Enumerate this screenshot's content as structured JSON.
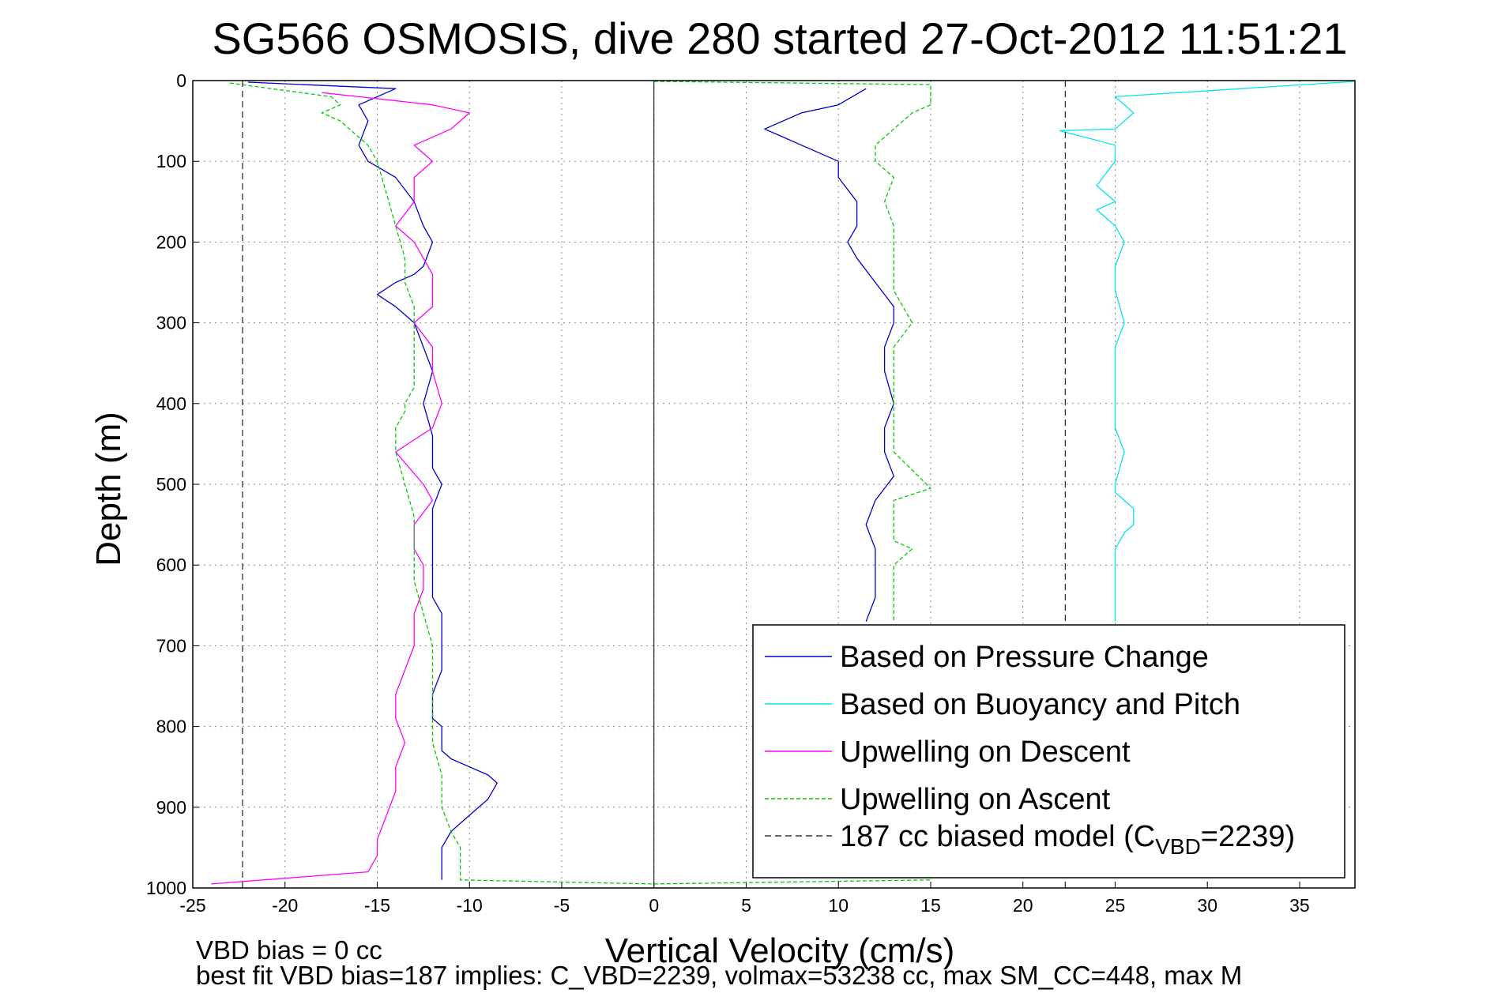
{
  "chart_data": {
    "type": "line",
    "title": "SG566 OSMOSIS, dive 280 started 27-Oct-2012 11:51:21",
    "xlabel": "Vertical Velocity (cm/s)",
    "ylabel": "Depth (m)",
    "xlim": [
      -25,
      38
    ],
    "ylim": [
      0,
      1000
    ],
    "y_reversed": true,
    "grid": true,
    "legend_position": "bottom-right",
    "x_ticks": [
      -25,
      -20,
      -15,
      -10,
      -5,
      0,
      5,
      10,
      15,
      20,
      25,
      30,
      35
    ],
    "y_ticks": [
      0,
      100,
      200,
      300,
      400,
      500,
      600,
      700,
      800,
      900,
      1000
    ],
    "series": [
      {
        "name": "Based on Pressure Change",
        "color": "#0000cc",
        "style": "solid",
        "segments": [
          {
            "x": [
              -22,
              -14,
              -16,
              -15.5,
              -16,
              -15.5,
              -14,
              -13,
              -12.5,
              -12,
              -12.5,
              -13,
              -14,
              -15,
              -14,
              -13,
              -12.5,
              -12,
              -12.5,
              -12,
              -12,
              -11.5,
              -12,
              -12,
              -12,
              -12,
              -11.5,
              -11.5,
              -11.5,
              -12,
              -12,
              -12,
              -11.5,
              -11.5,
              -11.5,
              -11.5,
              -11,
              -10,
              -9,
              -8.5,
              -9,
              -10,
              -11,
              -11.5,
              -11.5,
              -11.5
            ],
            "y": [
              2,
              10,
              30,
              50,
              80,
              100,
              120,
              150,
              180,
              200,
              230,
              240,
              250,
              265,
              280,
              300,
              330,
              360,
              400,
              440,
              480,
              500,
              530,
              560,
              600,
              640,
              660,
              700,
              730,
              760,
              780,
              790,
              800,
              810,
              820,
              830,
              840,
              850,
              860,
              870,
              890,
              910,
              930,
              950,
              970,
              990
            ]
          },
          {
            "x": [
              11.5,
              10,
              8,
              6,
              7,
              8,
              10,
              10,
              11,
              11,
              10.5,
              11,
              12,
              13,
              13,
              12.5,
              12.5,
              13,
              12.5,
              12.5,
              13,
              12.5,
              12,
              11.5,
              12,
              12,
              12,
              11.5
            ],
            "y": [
              10,
              30,
              40,
              60,
              70,
              80,
              100,
              120,
              150,
              180,
              200,
              220,
              250,
              280,
              300,
              330,
              360,
              400,
              430,
              460,
              490,
              505,
              520,
              550,
              580,
              600,
              640,
              670
            ]
          }
        ]
      },
      {
        "name": "Based on Buoyancy and Pitch",
        "color": "#00e5ee",
        "style": "solid",
        "segments": [
          {
            "x": [
              38,
              25,
              26,
              25,
              22,
              25,
              25,
              24,
              25,
              24,
              25,
              25.5,
              25,
              25,
              25.5,
              25,
              25,
              25,
              25,
              25,
              25.5,
              25,
              25,
              25.5,
              26,
              26,
              25.5,
              25,
              25,
              25,
              25,
              25
            ],
            "y": [
              1,
              20,
              40,
              60,
              62,
              80,
              100,
              130,
              150,
              160,
              180,
              200,
              230,
              260,
              300,
              330,
              360,
              380,
              400,
              430,
              460,
              500,
              510,
              520,
              530,
              550,
              560,
              580,
              600,
              630,
              650,
              670
            ]
          }
        ]
      },
      {
        "name": "Upwelling on Descent",
        "color": "#ff00ff",
        "style": "solid",
        "segments": [
          {
            "x": [
              -18,
              -16,
              -12,
              -10,
              -11,
              -13,
              -12,
              -13,
              -13,
              -14,
              -13,
              -12.5,
              -12,
              -12,
              -12,
              -13,
              -12,
              -12,
              -11.5,
              -12,
              -14,
              -12.5,
              -12,
              -13,
              -13,
              -12.5,
              -12.5,
              -13,
              -13,
              -13.5,
              -14,
              -14,
              -13.5,
              -14,
              -14,
              -14.5,
              -15,
              -15,
              -15.5,
              -24
            ],
            "y": [
              15,
              20,
              30,
              40,
              60,
              80,
              100,
              120,
              150,
              180,
              200,
              220,
              240,
              260,
              280,
              300,
              330,
              360,
              400,
              430,
              460,
              500,
              520,
              550,
              580,
              600,
              630,
              660,
              700,
              730,
              760,
              790,
              820,
              850,
              880,
              910,
              940,
              960,
              980,
              995
            ]
          }
        ]
      },
      {
        "name": "Upwelling on Ascent",
        "color": "#00cc00",
        "style": "dashed",
        "segments": [
          {
            "x": [
              -23,
              -17.5,
              -17,
              -18,
              -17,
              -15.5,
              -15,
              -14.5,
              -14,
              -13.5,
              -13.5,
              -13,
              -13,
              -13,
              -13,
              -13,
              -13.5,
              -13.5,
              -14,
              -14,
              -13.5,
              -13,
              -13,
              -13,
              -12.5,
              -12,
              -12,
              -12,
              -12,
              -11.5,
              -11.5,
              -11,
              -10.5,
              -10.5,
              -10.5,
              0,
              15,
              15
            ],
            "y": [
              3,
              20,
              30,
              40,
              50,
              80,
              100,
              140,
              180,
              220,
              250,
              280,
              300,
              330,
              360,
              380,
              400,
              410,
              430,
              460,
              500,
              540,
              580,
              620,
              660,
              700,
              740,
              780,
              820,
              860,
              900,
              930,
              950,
              970,
              990,
              995,
              990,
              985
            ]
          },
          {
            "x": [
              0,
              15,
              15,
              15,
              14,
              13,
              12,
              12,
              13,
              12.5,
              13,
              13,
              13,
              13,
              14,
              13,
              13,
              13,
              13,
              13,
              13,
              15,
              13,
              13,
              13,
              14,
              13,
              13,
              13,
              13,
              13
            ],
            "y": [
              1,
              5,
              10,
              30,
              40,
              60,
              80,
              100,
              120,
              150,
              180,
              200,
              230,
              260,
              300,
              330,
              360,
              380,
              400,
              430,
              460,
              505,
              520,
              550,
              570,
              580,
              600,
              620,
              640,
              660,
              670
            ]
          }
        ]
      },
      {
        "name": "187 cc biased model (C",
        "name_sub": "VBD",
        "name_suffix": "=2239)",
        "color": "#333333",
        "style": "dashed",
        "segments": [
          {
            "x": [
              -22.3,
              -22.3
            ],
            "y": [
              0,
              1000
            ]
          },
          {
            "x": [
              22.3,
              22.3
            ],
            "y": [
              0,
              1000
            ]
          }
        ]
      }
    ]
  },
  "footer": {
    "line1": "VBD bias = 0 cc",
    "line2": "best fit VBD bias=187 implies: C_VBD=2239, volmax=53238 cc, max SM_CC=448, max M"
  }
}
